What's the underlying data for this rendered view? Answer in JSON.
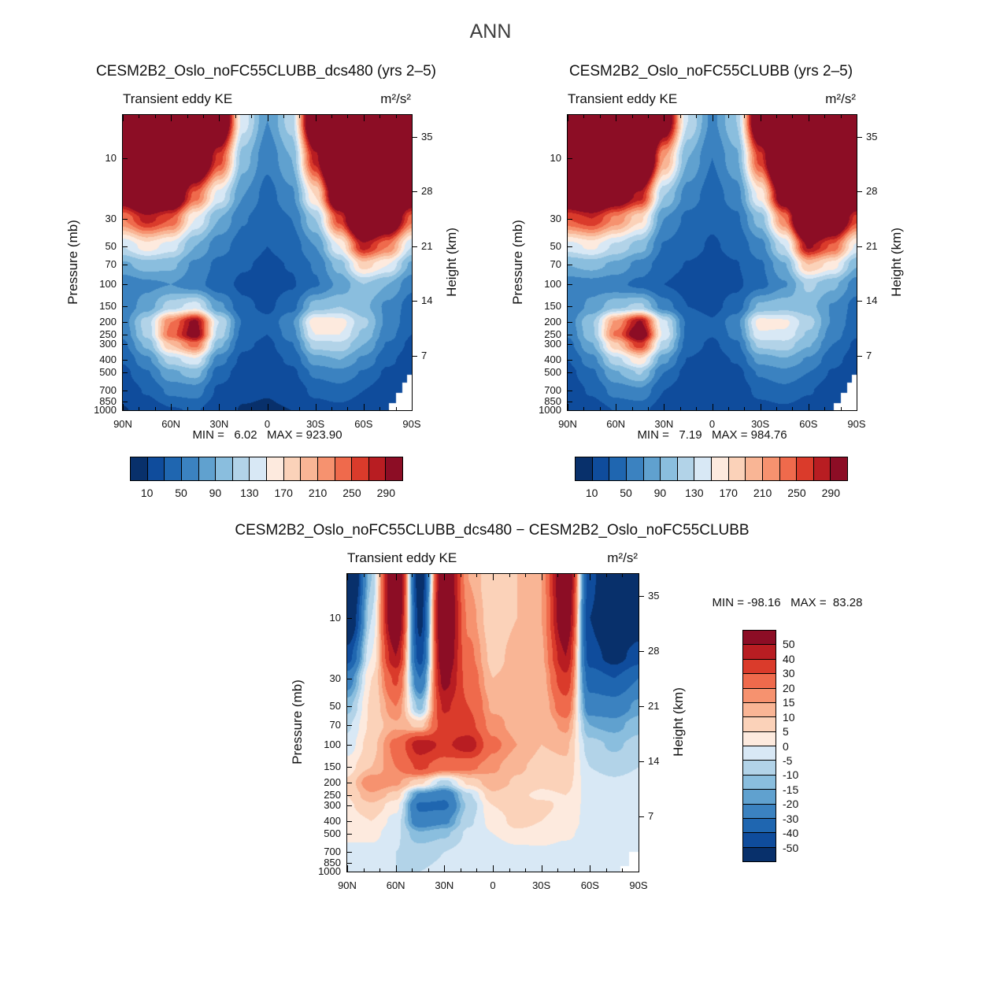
{
  "chart_data": {
    "type": "filled-contour",
    "figure_title": "ANN",
    "x_axis": {
      "tick_degrees": [
        90,
        60,
        30,
        0,
        -30,
        -60,
        -90
      ],
      "tick_labels": [
        "90N",
        "60N",
        "30N",
        "0",
        "30S",
        "60S",
        "90S"
      ],
      "minor_step_degrees": 10
    },
    "y_axis_left": {
      "label": "Pressure (mb)",
      "scale": "log",
      "top_mb": 4.5,
      "bottom_mb": 1000,
      "ticks": [
        10,
        30,
        50,
        70,
        100,
        150,
        200,
        250,
        300,
        400,
        500,
        700,
        850,
        1000
      ]
    },
    "y_axis_right": {
      "label": "Height (km)",
      "ticks": [
        35,
        28,
        21,
        14,
        7
      ]
    },
    "grid": {
      "lat": [
        90,
        75,
        60,
        45,
        30,
        15,
        0,
        -15,
        -30,
        -45,
        -60,
        -75,
        -90
      ],
      "pressure": [
        5,
        10,
        20,
        30,
        50,
        70,
        100,
        150,
        200,
        250,
        300,
        400,
        500,
        700,
        1000
      ]
    },
    "ke_scale": {
      "boundaries": [
        10,
        30,
        50,
        70,
        90,
        110,
        130,
        150,
        170,
        190,
        210,
        230,
        250,
        270,
        290
      ],
      "colorbar_labels": [
        "10",
        "50",
        "90",
        "130",
        "170",
        "210",
        "250",
        "290"
      ],
      "colors": [
        "#08306b",
        "#0f4c9c",
        "#1f66b0",
        "#3b82c0",
        "#60a1cf",
        "#8abede",
        "#b2d3e8",
        "#d8e8f5",
        "#fdeade",
        "#fbd2b9",
        "#f9b595",
        "#f6926f",
        "#ef6a4c",
        "#da3b2b",
        "#b81d22",
        "#8c0d25"
      ]
    },
    "diff_scale": {
      "boundaries": [
        -50,
        -40,
        -30,
        -20,
        -15,
        -10,
        -5,
        0,
        5,
        10,
        15,
        20,
        30,
        40,
        50
      ],
      "colorbar_labels": [
        "50",
        "40",
        "30",
        "20",
        "15",
        "10",
        "5",
        "0",
        "-5",
        "-10",
        "-15",
        "-20",
        "-30",
        "-40",
        "-50"
      ],
      "colors": [
        "#08306b",
        "#0f4c9c",
        "#1f66b0",
        "#3b82c0",
        "#60a1cf",
        "#8abede",
        "#b2d3e8",
        "#d8e8f5",
        "#fdeade",
        "#fbd2b9",
        "#f9b595",
        "#f6926f",
        "#ef6a4c",
        "#da3b2b",
        "#b81d22",
        "#8c0d25"
      ]
    },
    "panels": [
      {
        "id": "dcs480",
        "title": "CESM2B2_Oslo_noFC55CLUBB_dcs480 (yrs 2–5)",
        "subtitle": "Transient eddy KE",
        "units": "m²/s²",
        "min": 6.02,
        "max": 923.9,
        "stats": "MIN =   6.02   MAX = 923.90",
        "scale": "ke_scale",
        "mask_steps": [
          {
            "lat": -76,
            "p": 880
          },
          {
            "lat": -80,
            "p": 730
          },
          {
            "lat": -84,
            "p": 600
          },
          {
            "lat": -87,
            "p": 520
          }
        ],
        "values": [
          [
            700,
            800,
            750,
            600,
            400,
            140,
            70,
            120,
            400,
            700,
            950,
            850,
            700
          ],
          [
            500,
            650,
            600,
            420,
            260,
            100,
            55,
            90,
            280,
            550,
            800,
            700,
            550
          ],
          [
            330,
            420,
            380,
            240,
            140,
            70,
            42,
            65,
            170,
            380,
            600,
            500,
            350
          ],
          [
            230,
            280,
            250,
            150,
            90,
            52,
            35,
            50,
            110,
            260,
            450,
            380,
            240
          ],
          [
            130,
            160,
            140,
            90,
            58,
            40,
            30,
            38,
            70,
            150,
            280,
            230,
            130
          ],
          [
            85,
            100,
            95,
            65,
            44,
            32,
            26,
            31,
            52,
            100,
            180,
            150,
            85
          ],
          [
            55,
            65,
            70,
            58,
            38,
            26,
            22,
            28,
            48,
            75,
            110,
            90,
            55
          ],
          [
            55,
            80,
            120,
            140,
            75,
            34,
            26,
            42,
            100,
            110,
            95,
            65,
            40
          ],
          [
            60,
            120,
            230,
            300,
            130,
            48,
            34,
            68,
            165,
            160,
            115,
            65,
            35
          ],
          [
            55,
            115,
            240,
            310,
            120,
            42,
            30,
            60,
            150,
            150,
            105,
            58,
            30
          ],
          [
            45,
            95,
            190,
            240,
            95,
            34,
            25,
            48,
            120,
            125,
            90,
            48,
            25
          ],
          [
            32,
            65,
            120,
            145,
            58,
            25,
            19,
            34,
            80,
            90,
            65,
            35,
            18
          ],
          [
            24,
            48,
            85,
            100,
            40,
            19,
            15,
            25,
            55,
            65,
            48,
            26,
            14
          ],
          [
            16,
            32,
            55,
            60,
            26,
            13,
            11,
            16,
            35,
            42,
            30,
            16,
            10
          ],
          [
            9,
            16,
            28,
            32,
            16,
            9,
            8,
            10,
            20,
            24,
            16,
            10,
            7
          ]
        ]
      },
      {
        "id": "base",
        "title": "CESM2B2_Oslo_noFC55CLUBB (yrs 2–5)",
        "subtitle": "Transient eddy KE",
        "units": "m²/s²",
        "min": 7.19,
        "max": 984.76,
        "stats": "MIN =   7.19   MAX = 984.76",
        "scale": "ke_scale",
        "mask_steps": [
          {
            "lat": -76,
            "p": 880
          },
          {
            "lat": -80,
            "p": 730
          },
          {
            "lat": -84,
            "p": 600
          },
          {
            "lat": -87,
            "p": 520
          }
        ],
        "values": [
          [
            750,
            760,
            700,
            650,
            350,
            130,
            65,
            110,
            380,
            650,
            960,
            870,
            760
          ],
          [
            550,
            620,
            550,
            470,
            210,
            90,
            50,
            85,
            260,
            500,
            820,
            720,
            600
          ],
          [
            360,
            400,
            340,
            280,
            110,
            60,
            40,
            60,
            155,
            340,
            620,
            520,
            380
          ],
          [
            250,
            270,
            225,
            175,
            70,
            45,
            33,
            46,
            100,
            230,
            470,
            400,
            260
          ],
          [
            140,
            155,
            125,
            100,
            48,
            36,
            28,
            35,
            62,
            130,
            295,
            245,
            145
          ],
          [
            90,
            97,
            85,
            62,
            38,
            29,
            24,
            29,
            47,
            88,
            190,
            160,
            92
          ],
          [
            58,
            62,
            55,
            45,
            30,
            22,
            20,
            26,
            44,
            68,
            115,
            95,
            60
          ],
          [
            52,
            75,
            105,
            115,
            60,
            30,
            24,
            39,
            95,
            102,
            98,
            68,
            42
          ],
          [
            58,
            108,
            215,
            295,
            135,
            45,
            32,
            64,
            160,
            155,
            118,
            68,
            37
          ],
          [
            52,
            105,
            235,
            330,
            145,
            44,
            31,
            57,
            147,
            146,
            107,
            60,
            32
          ],
          [
            43,
            88,
            185,
            265,
            120,
            40,
            26,
            45,
            116,
            122,
            92,
            50,
            26
          ],
          [
            30,
            62,
            122,
            165,
            75,
            29,
            19,
            32,
            77,
            88,
            67,
            37,
            19
          ],
          [
            23,
            46,
            88,
            112,
            50,
            22,
            15,
            23,
            53,
            64,
            50,
            28,
            15
          ],
          [
            16,
            33,
            58,
            66,
            30,
            15,
            13,
            17,
            36,
            44,
            32,
            17,
            11
          ],
          [
            10,
            18,
            31,
            36,
            19,
            10,
            10,
            12,
            22,
            26,
            18,
            11,
            8
          ]
        ]
      },
      {
        "id": "diff",
        "title": "CESM2B2_Oslo_noFC55CLUBB_dcs480 − CESM2B2_Oslo_noFC55CLUBB",
        "subtitle": "Transient eddy KE",
        "units": "m²/s²",
        "min": -98.16,
        "max": 83.28,
        "stats": "MIN = -98.16   MAX =  83.28",
        "scale": "diff_scale",
        "mask_steps": [
          {
            "lat": -79,
            "p": 900
          },
          {
            "lat": -84,
            "p": 700
          }
        ],
        "values": [
          [
            -85,
            -10,
            75,
            -60,
            70,
            15,
            5,
            10,
            15,
            70,
            -45,
            -80,
            -65
          ],
          [
            -70,
            -5,
            70,
            -55,
            75,
            18,
            6,
            10,
            15,
            65,
            -50,
            -75,
            -60
          ],
          [
            -45,
            0,
            50,
            -45,
            65,
            22,
            8,
            12,
            14,
            50,
            -45,
            -55,
            -45
          ],
          [
            -25,
            5,
            32,
            -30,
            55,
            26,
            10,
            12,
            12,
            38,
            -35,
            -40,
            -30
          ],
          [
            -12,
            6,
            20,
            -12,
            42,
            30,
            14,
            13,
            11,
            26,
            -25,
            -26,
            -18
          ],
          [
            -6,
            6,
            14,
            8,
            35,
            33,
            17,
            13,
            10,
            17,
            -15,
            -17,
            -12
          ],
          [
            -3,
            8,
            22,
            46,
            38,
            46,
            22,
            15,
            10,
            11,
            -8,
            -11,
            -8
          ],
          [
            3,
            10,
            20,
            32,
            24,
            22,
            16,
            11,
            8,
            9,
            -5,
            -7,
            -5
          ],
          [
            6,
            20,
            16,
            6,
            -8,
            6,
            13,
            9,
            6,
            7,
            -3,
            -4,
            -3
          ],
          [
            5,
            14,
            8,
            -22,
            -28,
            -6,
            9,
            6,
            4,
            5,
            -2,
            -3,
            -2
          ],
          [
            4,
            9,
            2,
            -32,
            -32,
            -9,
            5,
            8,
            6,
            4,
            -2,
            -2,
            -2
          ],
          [
            2,
            5,
            -2,
            -27,
            -22,
            -6,
            2,
            7,
            5,
            3,
            -2,
            -2,
            -1
          ],
          [
            1,
            2,
            -4,
            -14,
            -11,
            -4,
            0,
            4,
            3,
            1,
            -2,
            -2,
            -1
          ],
          [
            -1,
            -2,
            -5,
            -7,
            -5,
            -3,
            -4,
            -2,
            -1,
            -2,
            -3,
            -2,
            -1
          ],
          [
            -2,
            -3,
            -5,
            -5,
            -4,
            -3,
            -4,
            -3,
            -2,
            -2,
            -3,
            -2,
            -1
          ]
        ]
      }
    ]
  }
}
